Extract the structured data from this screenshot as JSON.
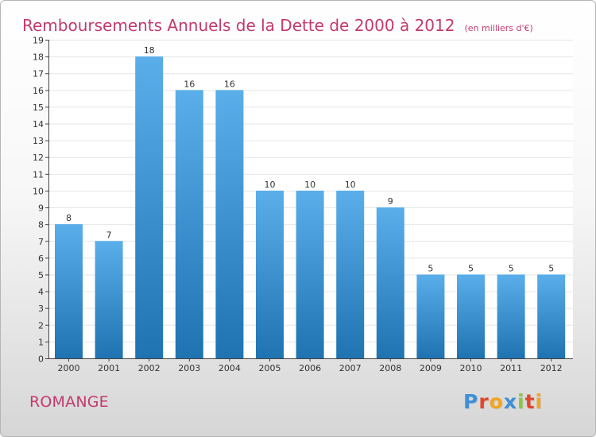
{
  "title": "Remboursements Annuels de la Dette de 2000 à 2012",
  "unit_note": "(en milliers d'€)",
  "commune": "ROMANGE",
  "logo": {
    "letters": [
      {
        "char": "P",
        "color": "#3f8fd6"
      },
      {
        "char": "r",
        "color": "#e2472c"
      },
      {
        "char": "o",
        "color": "#f2a41c"
      },
      {
        "char": "x",
        "color": "#3f8fd6"
      },
      {
        "char": "i",
        "color": "#8cc63e"
      },
      {
        "char": "t",
        "color": "#e2472c"
      },
      {
        "char": "i",
        "color": "#f2a41c"
      }
    ]
  },
  "colors": {
    "title": "#c33a6e",
    "bar_top": "#5aaeea",
    "bar_bottom": "#1f73b1",
    "grid": "#e6e6e6",
    "axis": "#444444"
  },
  "chart_data": {
    "type": "bar",
    "categories": [
      "2000",
      "2001",
      "2002",
      "2003",
      "2004",
      "2005",
      "2006",
      "2007",
      "2008",
      "2009",
      "2010",
      "2011",
      "2012"
    ],
    "values": [
      8,
      7,
      18,
      16,
      16,
      10,
      10,
      10,
      9,
      5,
      5,
      5,
      5
    ],
    "ylim": [
      0,
      19
    ],
    "yticks": [
      0,
      1,
      2,
      3,
      4,
      5,
      6,
      7,
      8,
      9,
      10,
      11,
      12,
      13,
      14,
      15,
      16,
      17,
      18,
      19
    ],
    "grid": true
  }
}
